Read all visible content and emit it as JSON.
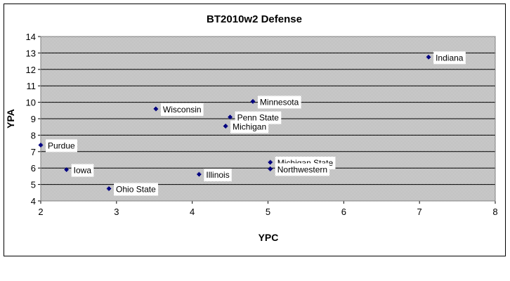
{
  "chart_data": {
    "type": "scatter",
    "title": "BT2010w2 Defense",
    "xlabel": "YPC",
    "ylabel": "YPA",
    "xlim": [
      2,
      8
    ],
    "ylim": [
      4,
      14
    ],
    "xticks": [
      2,
      3,
      4,
      5,
      6,
      7,
      8
    ],
    "yticks": [
      4,
      5,
      6,
      7,
      8,
      9,
      10,
      11,
      12,
      13,
      14
    ],
    "grid": true,
    "legend": "none",
    "marker_color": "#000080",
    "plot_background": "#c0c0c0",
    "points": [
      {
        "label": "Indiana",
        "x": 7.12,
        "y": 12.75
      },
      {
        "label": "Minnesota",
        "x": 4.8,
        "y": 10.05
      },
      {
        "label": "Wisconsin",
        "x": 3.52,
        "y": 9.6
      },
      {
        "label": "Penn State",
        "x": 4.5,
        "y": 9.1
      },
      {
        "label": "Michigan",
        "x": 4.44,
        "y": 8.55
      },
      {
        "label": "Purdue",
        "x": 2.0,
        "y": 7.4
      },
      {
        "label": "Michigan State",
        "x": 5.03,
        "y": 6.35
      },
      {
        "label": "Northwestern",
        "x": 5.03,
        "y": 5.95
      },
      {
        "label": "Iowa",
        "x": 2.34,
        "y": 5.9
      },
      {
        "label": "Illinois",
        "x": 4.09,
        "y": 5.62
      },
      {
        "label": "Ohio State",
        "x": 2.9,
        "y": 4.75
      }
    ]
  }
}
